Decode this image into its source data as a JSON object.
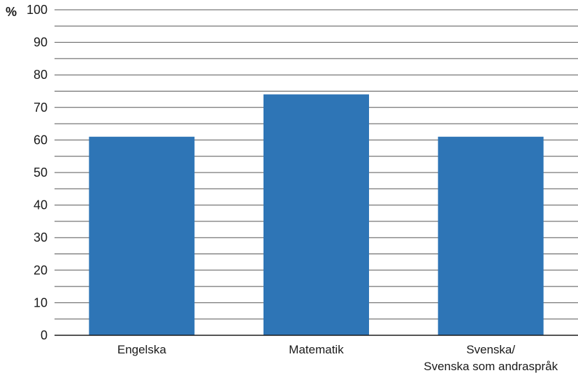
{
  "chart_data": {
    "type": "bar",
    "y_unit_label": "%",
    "categories": [
      [
        "Engelska"
      ],
      [
        "Matematik"
      ],
      [
        "Svenska/",
        "Svenska som andraspråk"
      ]
    ],
    "values": [
      61,
      74,
      61
    ],
    "ylim": [
      0,
      100
    ],
    "yticks": [
      "0",
      "10",
      "20",
      "30",
      "40",
      "50",
      "60",
      "70",
      "80",
      "90",
      "100"
    ],
    "minor_gridlines": true,
    "grid": true,
    "bar_color": "#2e75b6",
    "grid_color": "#555555"
  }
}
